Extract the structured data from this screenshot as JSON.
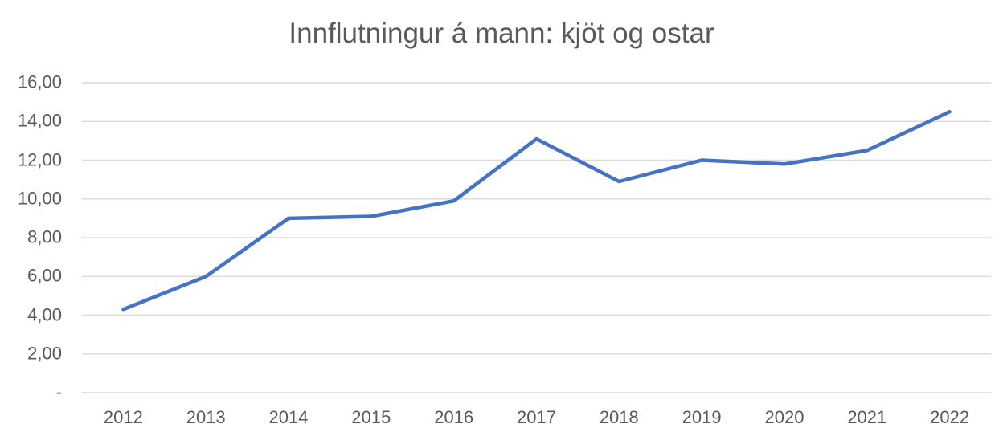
{
  "chart_data": {
    "type": "line",
    "title": "Innflutningur á mann: kjöt og ostar",
    "categories": [
      "2012",
      "2013",
      "2014",
      "2015",
      "2016",
      "2017",
      "2018",
      "2019",
      "2020",
      "2021",
      "2022"
    ],
    "series": [
      {
        "name": "Innflutningur á mann: kjöt og ostar",
        "values": [
          4.3,
          6.0,
          9.0,
          9.1,
          9.9,
          13.1,
          10.9,
          12.0,
          11.8,
          12.5,
          14.5
        ]
      }
    ],
    "xlabel": "",
    "ylabel": "",
    "ylim": [
      0,
      16
    ],
    "y_tick_step": 2,
    "y_tick_labels": [
      "-",
      "2,00",
      "4,00",
      "6,00",
      "8,00",
      "10,00",
      "12,00",
      "14,00",
      "16,00"
    ],
    "grid": "horizontal-only",
    "legend": "none",
    "colors": {
      "line": "#4472C4",
      "text": "#595959",
      "gridline": "#D9D9D9",
      "background": "#FFFFFF"
    }
  }
}
